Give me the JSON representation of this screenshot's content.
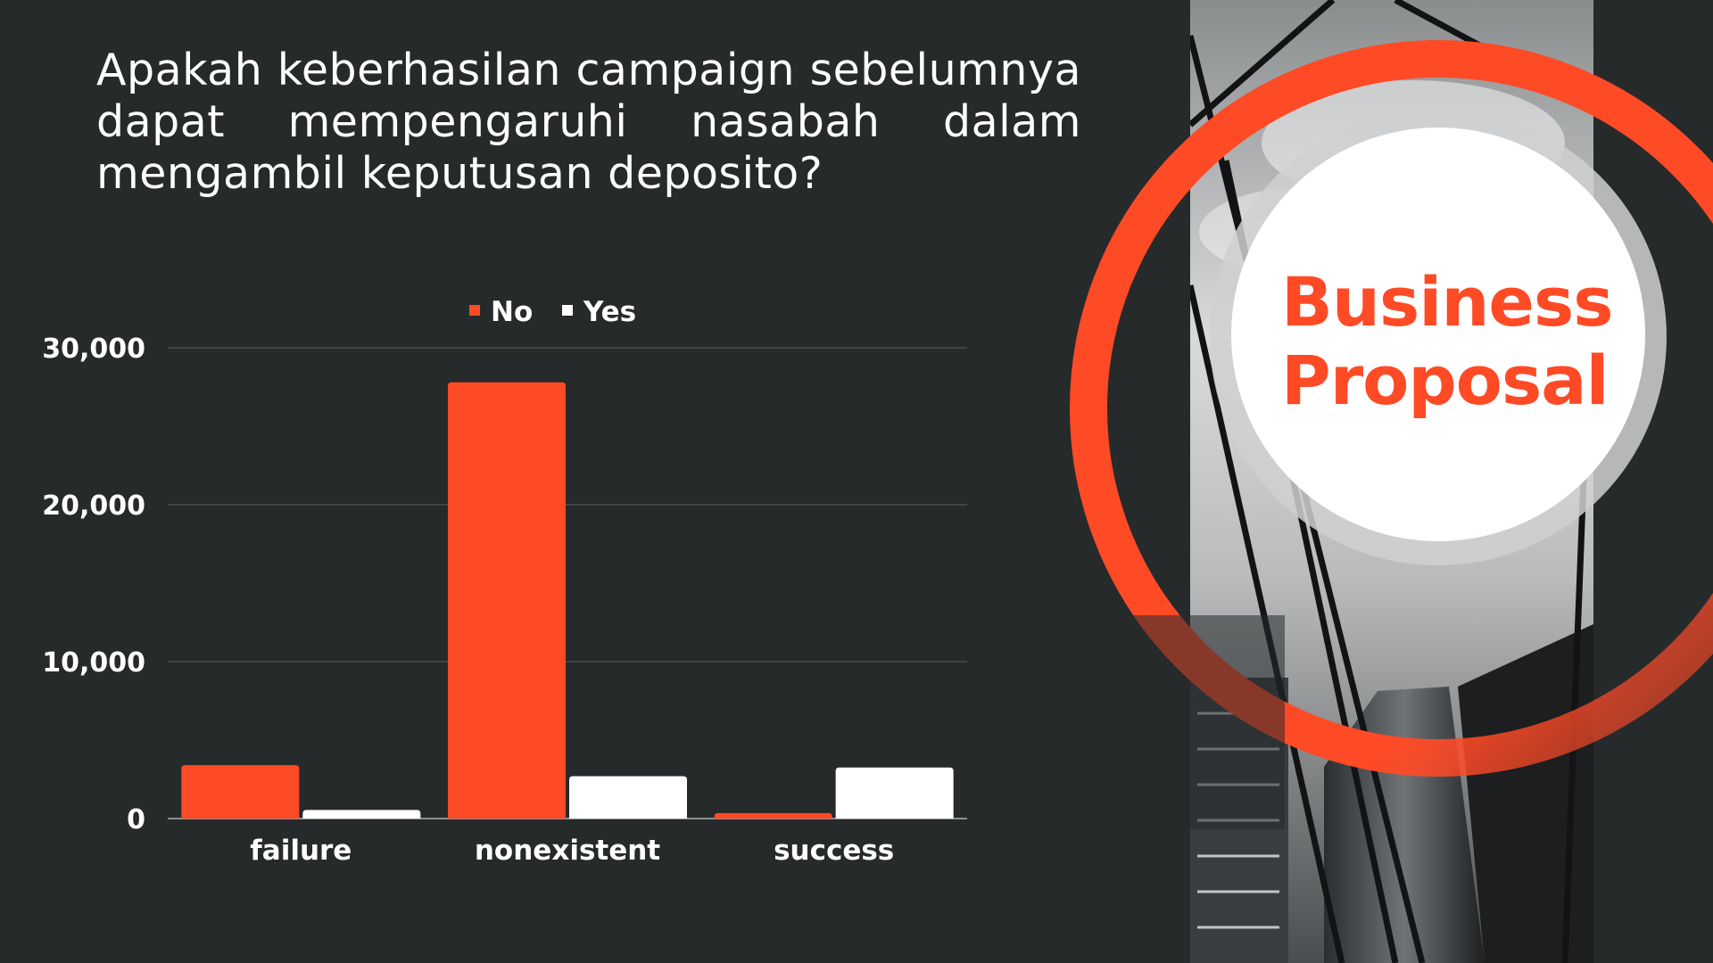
{
  "slide": {
    "question": "Apakah keberhasilan campaign sebelumnya dapat mempengaruhi nasabah dalam mengambil keputusan deposito?",
    "badge_line1": "Business",
    "badge_line2": "Proposal"
  },
  "colors": {
    "background": "#262a2b",
    "accent": "#ff4a26",
    "secondary": "#ffffff"
  },
  "chart_data": {
    "type": "bar",
    "title": "",
    "xlabel": "",
    "ylabel": "",
    "categories": [
      "failure",
      "nonexistent",
      "success"
    ],
    "series": [
      {
        "name": "No",
        "color": "#ff4a26",
        "values": [
          3400,
          27800,
          350
        ]
      },
      {
        "name": "Yes",
        "color": "#ffffff",
        "values": [
          550,
          2700,
          3250
        ]
      }
    ],
    "ylim": [
      0,
      30000
    ],
    "yticks": [
      0,
      10000,
      20000,
      30000
    ],
    "ytick_labels": [
      "0",
      "10,000",
      "20,000",
      "30,000"
    ],
    "grid": true,
    "legend": "top-center"
  }
}
